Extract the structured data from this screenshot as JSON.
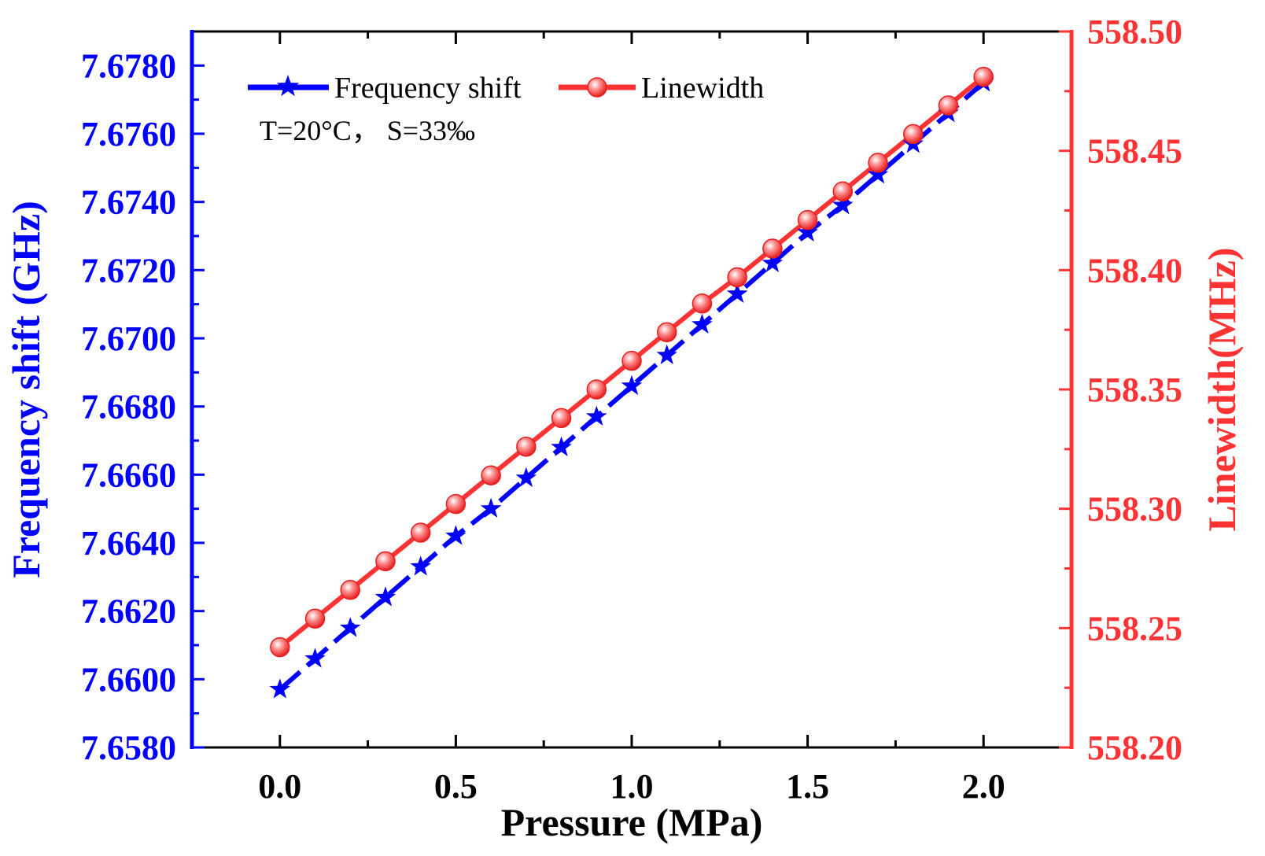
{
  "chart_data": {
    "type": "line",
    "title": "",
    "xlabel": "Pressure (MPa)",
    "ylabel_left": "Frequency shift (GHz)",
    "ylabel_right": "Linewidth(MHz)",
    "xlim": [
      -0.25,
      2.25
    ],
    "ylim_left": [
      7.658,
      7.679
    ],
    "ylim_right": [
      558.2,
      558.5
    ],
    "x_ticks": [
      "0.0",
      "0.5",
      "1.0",
      "1.5",
      "2.0"
    ],
    "y_left_ticks": [
      "7.6580",
      "7.6600",
      "7.6620",
      "7.6640",
      "7.6660",
      "7.6680",
      "7.6700",
      "7.6720",
      "7.6740",
      "7.6760",
      "7.6780"
    ],
    "y_right_ticks": [
      "558.20",
      "558.25",
      "558.30",
      "558.35",
      "558.40",
      "558.45",
      "558.50"
    ],
    "x": [
      0.0,
      0.1,
      0.2,
      0.3,
      0.4,
      0.5,
      0.6,
      0.7,
      0.8,
      0.9,
      1.0,
      1.1,
      1.2,
      1.3,
      1.4,
      1.5,
      1.6,
      1.7,
      1.8,
      1.9,
      2.0
    ],
    "series": [
      {
        "name": "Frequency shift",
        "axis": "left",
        "color": "#0000ff",
        "marker": "star",
        "values": [
          7.6597,
          7.6606,
          7.6615,
          7.6624,
          7.6633,
          7.6642,
          7.665,
          7.6659,
          7.6668,
          7.6677,
          7.6686,
          7.6695,
          7.6704,
          7.6713,
          7.6722,
          7.6731,
          7.6739,
          7.6748,
          7.6757,
          7.6766,
          7.6775
        ]
      },
      {
        "name": "Linewidth",
        "axis": "right",
        "color": "#ff3333",
        "marker": "sphere",
        "values": [
          558.242,
          558.254,
          558.266,
          558.278,
          558.29,
          558.302,
          558.314,
          558.326,
          558.338,
          558.35,
          558.362,
          558.374,
          558.386,
          558.397,
          558.409,
          558.421,
          558.433,
          558.445,
          558.457,
          558.469,
          558.481
        ]
      }
    ],
    "legend_position": "top-left",
    "annotation": "T=20°C，  S=33‰",
    "colors": {
      "left_axis": "#0000ff",
      "right_axis": "#ff3333",
      "frame": "#000000"
    }
  }
}
